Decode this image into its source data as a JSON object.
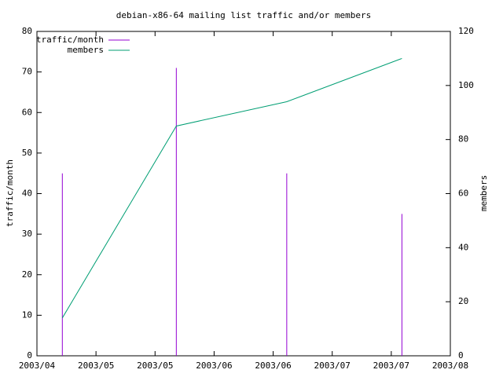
{
  "chart_data": {
    "type": "impulse-line",
    "title": "debian-x86-64 mailing list traffic and/or members",
    "y_label": "traffic/month",
    "y2_label": "members",
    "x": [
      0.43,
      2.36,
      4.23,
      6.18
    ],
    "series": [
      {
        "name": "traffic/month",
        "color": "#9400d3",
        "style": "impulses",
        "values": [
          45,
          71,
          45,
          35
        ]
      },
      {
        "name": "members",
        "color": "#009e73",
        "style": "line",
        "axis": "y2",
        "values": [
          14,
          85,
          94,
          110
        ]
      }
    ],
    "xlim": [
      0,
      7
    ],
    "xticks": [
      {
        "value": 0,
        "label": "2003/04"
      },
      {
        "value": 1,
        "label": "2003/05"
      },
      {
        "value": 2,
        "label": "2003/05"
      },
      {
        "value": 3,
        "label": "2003/06"
      },
      {
        "value": 4,
        "label": "2003/06"
      },
      {
        "value": 5,
        "label": "2003/07"
      },
      {
        "value": 6,
        "label": "2003/07"
      },
      {
        "value": 7,
        "label": "2003/08"
      }
    ],
    "ylim": [
      0,
      80
    ],
    "yticks": [
      0,
      10,
      20,
      30,
      40,
      50,
      60,
      70,
      80
    ],
    "y2lim": [
      0,
      120
    ],
    "y2ticks": [
      0,
      20,
      40,
      60,
      80,
      100,
      120
    ],
    "legend": "top-left"
  }
}
